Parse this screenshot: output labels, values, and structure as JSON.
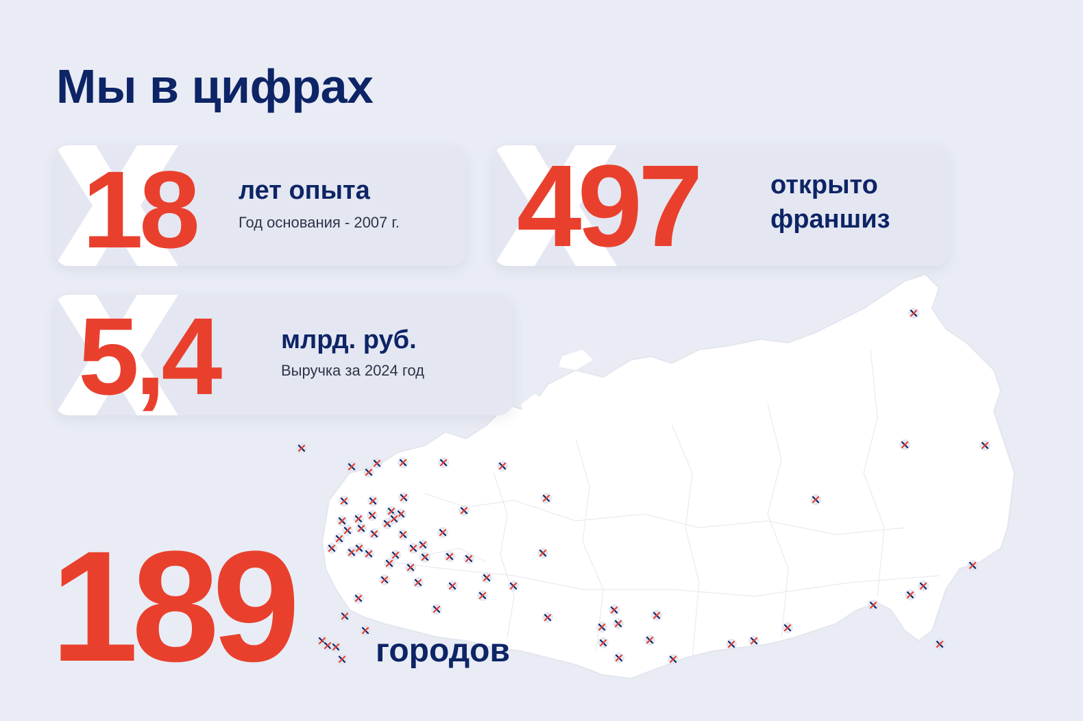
{
  "title": "Мы в цифрах",
  "stats": {
    "years": {
      "value": "18",
      "label": "лет опыта",
      "sub": "Год основания - 2007 г."
    },
    "franchises": {
      "value": "497",
      "label_line1": "открыто",
      "label_line2": "франшиз"
    },
    "revenue": {
      "value": "5,4",
      "label": "млрд. руб.",
      "sub": "Выручка за 2024 год"
    },
    "cities": {
      "value": "189",
      "label": "городов"
    }
  },
  "colors": {
    "accent": "#e9402e",
    "primary": "#0d2466",
    "background": "#e9ecf4"
  }
}
